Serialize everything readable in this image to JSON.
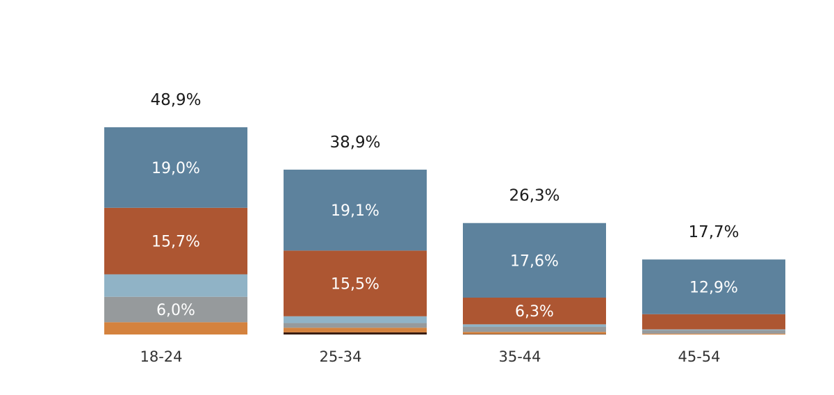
{
  "chart_data": {
    "type": "bar",
    "stacked": true,
    "categories": [
      "18-24",
      "25-34",
      "35-44",
      "45-54"
    ],
    "totals": [
      "48,9%",
      "38,9%",
      "26,3%",
      "17,7%"
    ],
    "total_values": [
      48.9,
      38.9,
      26.3,
      17.7
    ],
    "series": [
      {
        "values": [
          19.0,
          19.1,
          17.6,
          12.9
        ],
        "labels": [
          "19,0%",
          "19,1%",
          "17,6%",
          "12,9%"
        ],
        "color": "#5d829d"
      },
      {
        "values": [
          15.7,
          15.5,
          6.3,
          3.6
        ],
        "labels": [
          "15,7%",
          "15,5%",
          "6,3%",
          ""
        ],
        "color": "#ad5632"
      },
      {
        "values": [
          5.3,
          1.6,
          0.6,
          0.2
        ],
        "labels": [
          "",
          "",
          "",
          ""
        ],
        "color": "#90b3c6"
      },
      {
        "values": [
          6.0,
          1.1,
          1.2,
          0.8
        ],
        "labels": [
          "6,0%",
          "",
          "",
          ""
        ],
        "color": "#969a9c"
      },
      {
        "values": [
          2.9,
          1.1,
          0.5,
          0.2
        ],
        "labels": [
          "",
          "",
          "",
          ""
        ],
        "color": "#d4823e"
      },
      {
        "values": [
          0.0,
          0.5,
          0.1,
          0.0
        ],
        "labels": [
          "",
          "",
          "",
          ""
        ],
        "color": "#3a1e12"
      }
    ],
    "ylim": [
      0,
      48.9
    ],
    "grid": false,
    "legend": "none"
  }
}
